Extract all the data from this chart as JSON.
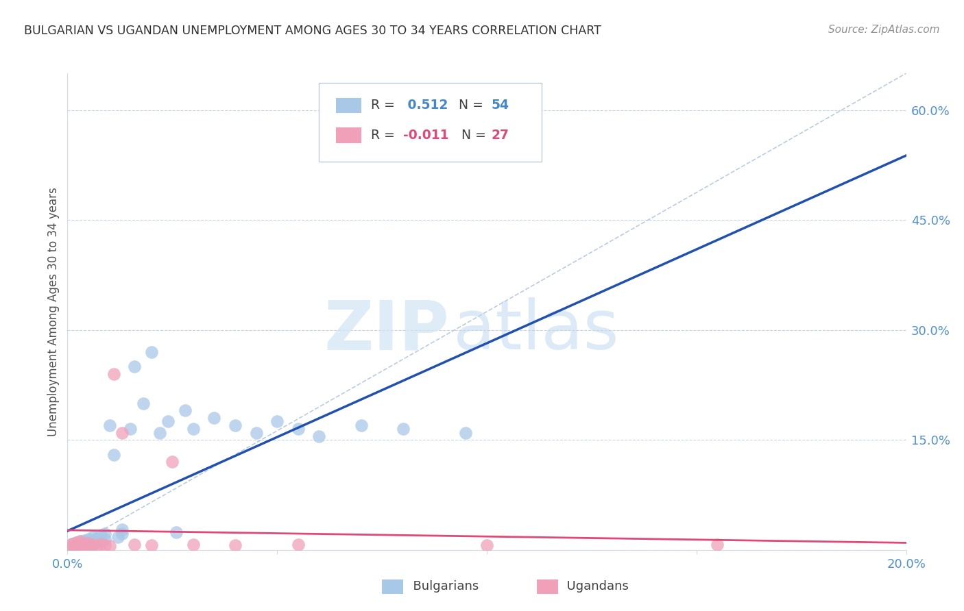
{
  "title": "BULGARIAN VS UGANDAN UNEMPLOYMENT AMONG AGES 30 TO 34 YEARS CORRELATION CHART",
  "source": "Source: ZipAtlas.com",
  "ylabel": "Unemployment Among Ages 30 to 34 years",
  "xlim": [
    0.0,
    0.2
  ],
  "ylim": [
    0.0,
    0.65
  ],
  "watermark_zip": "ZIP",
  "watermark_atlas": "atlas",
  "bulgarian_color": "#a8c8e8",
  "ugandan_color": "#f0a0b8",
  "bulgarian_line_color": "#2050b0",
  "ugandan_line_color": "#e04878",
  "diagonal_color": "#b8cce4",
  "bg_color": "#ffffff",
  "grid_color": "#c8d4e4",
  "bulgarian_x": [
    0.001,
    0.001,
    0.001,
    0.002,
    0.002,
    0.002,
    0.002,
    0.003,
    0.003,
    0.003,
    0.003,
    0.003,
    0.004,
    0.004,
    0.004,
    0.004,
    0.004,
    0.005,
    0.005,
    0.005,
    0.005,
    0.006,
    0.006,
    0.006,
    0.006,
    0.007,
    0.007,
    0.008,
    0.008,
    0.009,
    0.009,
    0.01,
    0.011,
    0.012,
    0.013,
    0.013,
    0.015,
    0.016,
    0.018,
    0.02,
    0.022,
    0.024,
    0.026,
    0.028,
    0.03,
    0.035,
    0.04,
    0.045,
    0.05,
    0.055,
    0.06,
    0.07,
    0.08,
    0.095
  ],
  "bulgarian_y": [
    0.005,
    0.008,
    0.003,
    0.006,
    0.01,
    0.004,
    0.007,
    0.005,
    0.009,
    0.003,
    0.007,
    0.012,
    0.006,
    0.01,
    0.004,
    0.008,
    0.013,
    0.007,
    0.011,
    0.005,
    0.015,
    0.009,
    0.013,
    0.006,
    0.018,
    0.011,
    0.016,
    0.013,
    0.02,
    0.015,
    0.022,
    0.17,
    0.13,
    0.018,
    0.022,
    0.028,
    0.165,
    0.25,
    0.2,
    0.27,
    0.16,
    0.175,
    0.024,
    0.19,
    0.165,
    0.18,
    0.17,
    0.16,
    0.175,
    0.165,
    0.155,
    0.17,
    0.165,
    0.16
  ],
  "ugandan_x": [
    0.001,
    0.001,
    0.002,
    0.002,
    0.002,
    0.003,
    0.003,
    0.003,
    0.004,
    0.004,
    0.005,
    0.005,
    0.006,
    0.007,
    0.008,
    0.009,
    0.01,
    0.011,
    0.013,
    0.016,
    0.02,
    0.025,
    0.03,
    0.04,
    0.055,
    0.1,
    0.155
  ],
  "ugandan_y": [
    0.005,
    0.008,
    0.006,
    0.01,
    0.004,
    0.007,
    0.012,
    0.005,
    0.008,
    0.006,
    0.009,
    0.004,
    0.007,
    0.005,
    0.008,
    0.006,
    0.005,
    0.24,
    0.16,
    0.007,
    0.006,
    0.12,
    0.007,
    0.006,
    0.007,
    0.006,
    0.007
  ]
}
